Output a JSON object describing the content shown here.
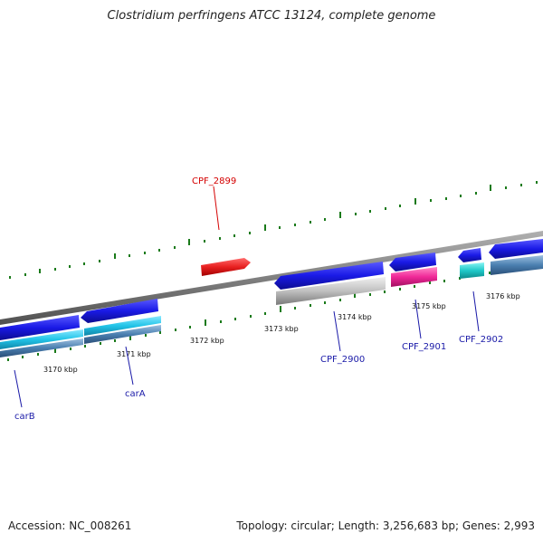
{
  "title": "Clostridium perfringens ATCC 13124, complete genome",
  "footer": {
    "accession": "Accession: NC_008261",
    "summary": "Topology: circular; Length: 3,256,683 bp; Genes: 2,993"
  },
  "colors": {
    "backbone": "#808080",
    "tick": "#1a7a1a",
    "label_blue": "#1a1aa8",
    "label_red": "#d40000",
    "gene_blue": "#1a1ae6",
    "gene_red": "#e82020",
    "gene_cyan": "#22c4e8",
    "gene_teal": "#1ec8c8",
    "gene_steel": "#4a7fb0",
    "gene_gray": "#c0c0c0",
    "gene_magenta": "#f02898"
  },
  "scale_labels": [
    "3170 kbp",
    "3171 kbp",
    "3172 kbp",
    "3173 kbp",
    "3174 kbp",
    "3175 kbp",
    "3176 kbp"
  ],
  "gene_labels": {
    "carB": "carB",
    "carA": "carA",
    "cpf2899": "CPF_2899",
    "cpf2900": "CPF_2900",
    "cpf2901": "CPF_2901",
    "cpf2902": "CPF_2902"
  }
}
